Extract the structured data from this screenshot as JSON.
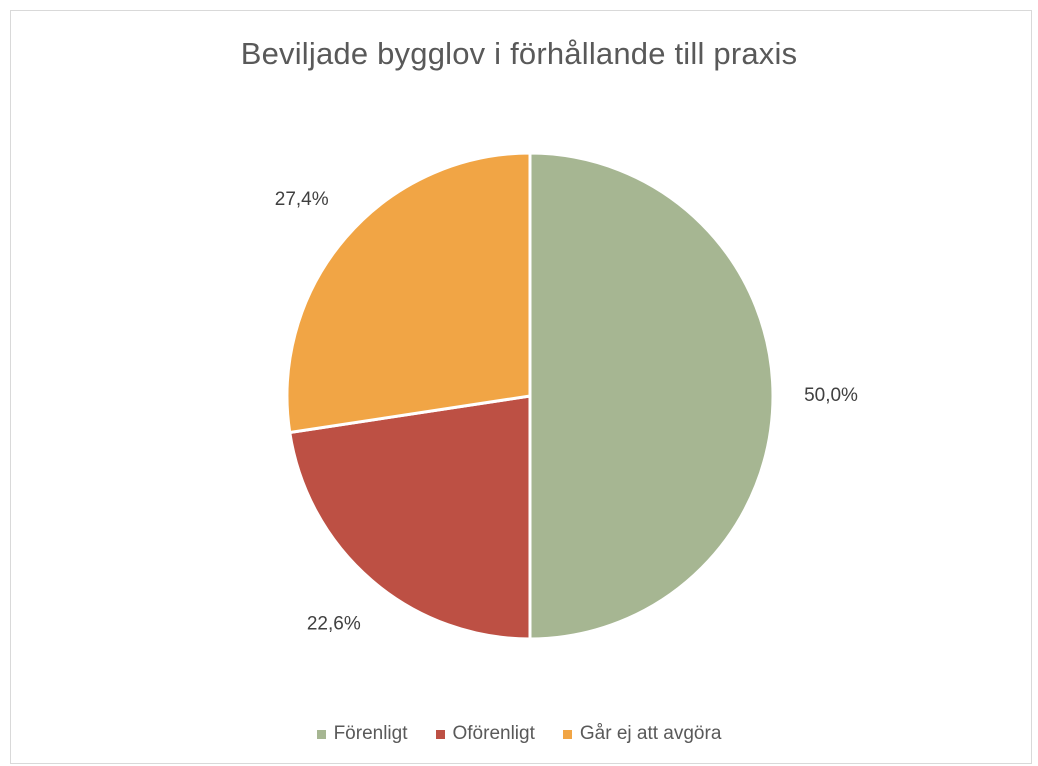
{
  "chart_data": {
    "type": "pie",
    "title": "Beviljade bygglov i förhållande till praxis",
    "slices": [
      {
        "label": "Förenligt",
        "value": 50.0,
        "display": "50,0%",
        "color": "#a6b692"
      },
      {
        "label": "Oförenligt",
        "value": 22.6,
        "display": "22,6%",
        "color": "#bd5044"
      },
      {
        "label": "Går ej att avgöra",
        "value": 27.4,
        "display": "27,4%",
        "color": "#f1a545"
      }
    ],
    "legend_position": "bottom",
    "start_angle": "12 o'clock, clockwise"
  }
}
